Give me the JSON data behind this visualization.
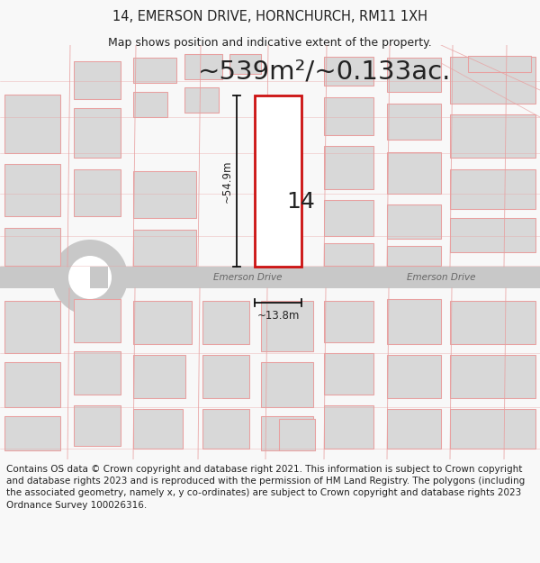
{
  "title_line1": "14, EMERSON DRIVE, HORNCHURCH, RM11 1XH",
  "title_line2": "Map shows position and indicative extent of the property.",
  "area_text": "~539m²/~0.133ac.",
  "label_number": "14",
  "dim_vertical": "~54.9m",
  "dim_horizontal": "~13.8m",
  "road_name_center": "Emerson Drive",
  "road_name_right": "Emerson Drive",
  "footer_text": "Contains OS data © Crown copyright and database right 2021. This information is subject to Crown copyright and database rights 2023 and is reproduced with the permission of HM Land Registry. The polygons (including the associated geometry, namely x, y co-ordinates) are subject to Crown copyright and database rights 2023 Ordnance Survey 100026316.",
  "bg_color": "#f8f8f8",
  "map_bg": "#ffffff",
  "building_fill": "#d8d8d8",
  "building_stroke": "#e8a0a0",
  "highlight_stroke": "#cc1111",
  "road_fill": "#c8c8c8",
  "dim_line_color": "#111111",
  "text_color": "#222222",
  "road_text_color": "#666666",
  "footer_fontsize": 7.5,
  "title_fontsize": 10.5,
  "subtitle_fontsize": 9.0,
  "area_fontsize": 21,
  "number_fontsize": 18,
  "dim_fontsize": 8.5,
  "road_fontsize": 7.5
}
